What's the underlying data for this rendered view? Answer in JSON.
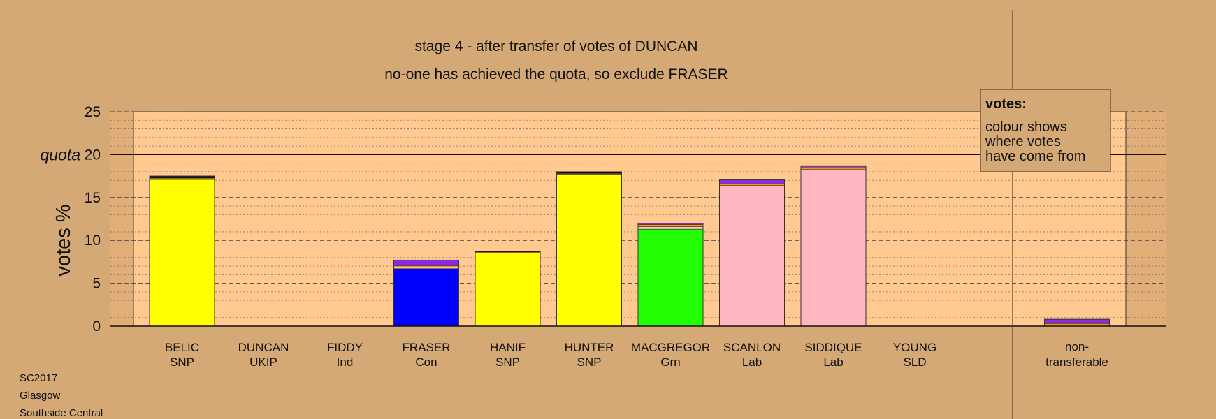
{
  "chart_data": {
    "type": "bar",
    "title": "stage 4 - after transfer of votes of DUNCAN",
    "subtitle": "no-one has achieved the quota, so exclude FRASER",
    "ylabel": "votes %",
    "quota_label": "quota",
    "quota": 20,
    "ylim": [
      0,
      25
    ],
    "yticks": [
      0,
      5,
      10,
      15,
      20,
      25
    ],
    "grid": true,
    "legend": {
      "position": "top-right",
      "title": "votes:",
      "lines": [
        "colour shows",
        "where votes",
        "have come from"
      ]
    },
    "categories": [
      {
        "name": "BELIC",
        "party": "SNP",
        "segments": [
          {
            "value": 17.1,
            "color": "#ffff00"
          },
          {
            "value": 0.15,
            "color": "#ff9900"
          },
          {
            "value": 0.25,
            "color": "#111111"
          }
        ]
      },
      {
        "name": "DUNCAN",
        "party": "UKIP",
        "segments": []
      },
      {
        "name": "FIDDY",
        "party": "Ind",
        "segments": []
      },
      {
        "name": "FRASER",
        "party": "Con",
        "segments": [
          {
            "value": 6.7,
            "color": "#0000ff"
          },
          {
            "value": 0.2,
            "color": "#ffb6c1"
          },
          {
            "value": 0.15,
            "color": "#ff9900"
          },
          {
            "value": 0.65,
            "color": "#8a2be2"
          }
        ]
      },
      {
        "name": "HANIF",
        "party": "SNP",
        "segments": [
          {
            "value": 8.5,
            "color": "#ffff00"
          },
          {
            "value": 0.12,
            "color": "#ff9900"
          },
          {
            "value": 0.12,
            "color": "#111111"
          }
        ]
      },
      {
        "name": "HUNTER",
        "party": "SNP",
        "segments": [
          {
            "value": 17.7,
            "color": "#ffff00"
          },
          {
            "value": 0.1,
            "color": "#ff9900"
          },
          {
            "value": 0.2,
            "color": "#111111"
          }
        ]
      },
      {
        "name": "MACGREGOR",
        "party": "Grn",
        "segments": [
          {
            "value": 11.3,
            "color": "#22ff00"
          },
          {
            "value": 0.3,
            "color": "#ffb6c1"
          },
          {
            "value": 0.25,
            "color": "#ff9900"
          },
          {
            "value": 0.15,
            "color": "#8a2be2"
          }
        ]
      },
      {
        "name": "SCANLON",
        "party": "Lab",
        "segments": [
          {
            "value": 16.4,
            "color": "#ffb6c1"
          },
          {
            "value": 0.2,
            "color": "#ff9900"
          },
          {
            "value": 0.45,
            "color": "#8a2be2"
          }
        ]
      },
      {
        "name": "SIDDIQUE",
        "party": "Lab",
        "segments": [
          {
            "value": 18.3,
            "color": "#ffb6c1"
          },
          {
            "value": 0.25,
            "color": "#ff9900"
          },
          {
            "value": 0.15,
            "color": "#8a2be2"
          }
        ]
      },
      {
        "name": "YOUNG",
        "party": "SLD",
        "segments": []
      }
    ],
    "nontransferable": {
      "label_lines": [
        "non-",
        "transferable"
      ],
      "segments": [
        {
          "value": 0.3,
          "color": "#ff9900"
        },
        {
          "value": 0.5,
          "color": "#8a2be2"
        }
      ]
    }
  },
  "footer": {
    "lines": [
      "SC2017",
      "Glasgow",
      "Southside Central"
    ]
  }
}
